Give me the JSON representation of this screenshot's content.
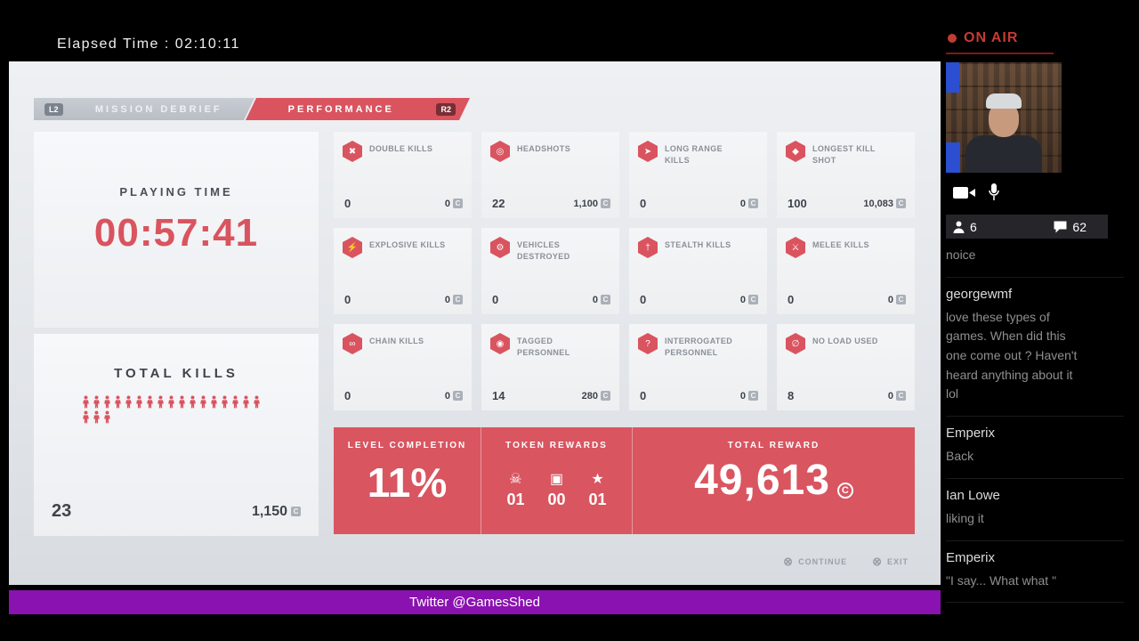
{
  "colors": {
    "accent": "#d9545f",
    "ticker_purple": "#8a12b0",
    "on_air_red": "#c43b33"
  },
  "stream": {
    "elapsed": "Elapsed Time : 02:10:11",
    "on_air": "ON AIR",
    "viewers": "6",
    "comments": "62",
    "ticker": "Twitter @GamesShed"
  },
  "chat": {
    "messages": [
      {
        "name": "",
        "text": "noice"
      },
      {
        "name": "georgewmf",
        "text": "love these types of games. When did this one come out ? Haven't heard anything about it lol"
      },
      {
        "name": "Emperix",
        "text": "Back"
      },
      {
        "name": "Ian Lowe",
        "text": "liking it"
      },
      {
        "name": "Emperix",
        "text": "\"I say... What what \""
      }
    ]
  },
  "game": {
    "tabs": [
      {
        "badge": "L2",
        "label": "MISSION DEBRIEF"
      },
      {
        "badge": "R2",
        "label": "PERFORMANCE"
      }
    ],
    "playing_time": {
      "label": "PLAYING TIME",
      "value": "00:57:41"
    },
    "total_kills": {
      "label": "TOTAL KILLS",
      "count": "23",
      "reward": "1,150",
      "icon_count": 20
    },
    "stats": [
      {
        "icon": "double-kills-icon",
        "glyph": "✖",
        "label": "DOUBLE KILLS",
        "value": "0",
        "reward": "0"
      },
      {
        "icon": "headshots-icon",
        "glyph": "◎",
        "label": "HEADSHOTS",
        "value": "22",
        "reward": "1,100"
      },
      {
        "icon": "long-range-kills-icon",
        "glyph": "➤",
        "label": "LONG RANGE KILLS",
        "value": "0",
        "reward": "0"
      },
      {
        "icon": "longest-kill-shot-icon",
        "glyph": "◆",
        "label": "LONGEST KILL SHOT",
        "value": "100",
        "reward": "10,083"
      },
      {
        "icon": "explosive-kills-icon",
        "glyph": "⚡",
        "label": "EXPLOSIVE KILLS",
        "value": "0",
        "reward": "0"
      },
      {
        "icon": "vehicles-destroyed-icon",
        "glyph": "⚙",
        "label": "VEHICLES DESTROYED",
        "value": "0",
        "reward": "0"
      },
      {
        "icon": "stealth-kills-icon",
        "glyph": "†",
        "label": "STEALTH KILLS",
        "value": "0",
        "reward": "0"
      },
      {
        "icon": "melee-kills-icon",
        "glyph": "⚔",
        "label": "MELEE KILLS",
        "value": "0",
        "reward": "0"
      },
      {
        "icon": "chain-kills-icon",
        "glyph": "∞",
        "label": "CHAIN KILLS",
        "value": "0",
        "reward": "0"
      },
      {
        "icon": "tagged-personnel-icon",
        "glyph": "◉",
        "label": "TAGGED PERSONNEL",
        "value": "14",
        "reward": "280"
      },
      {
        "icon": "interrogated-personnel-icon",
        "glyph": "?",
        "label": "INTERROGATED PERSONNEL",
        "value": "0",
        "reward": "0"
      },
      {
        "icon": "no-load-used-icon",
        "glyph": "∅",
        "label": "NO LOAD USED",
        "value": "8",
        "reward": "0"
      }
    ],
    "summary": {
      "level_completion_label": "LEVEL COMPLETION",
      "level_completion": "11%",
      "token_rewards_label": "TOKEN REWARDS",
      "tokens": [
        {
          "icon": "skull-token-icon",
          "glyph": "☠",
          "value": "01"
        },
        {
          "icon": "crate-token-icon",
          "glyph": "▣",
          "value": "00"
        },
        {
          "icon": "star-token-icon",
          "glyph": "★",
          "value": "01"
        }
      ],
      "total_reward_label": "TOTAL REWARD",
      "total_reward": "49,613"
    },
    "footer": {
      "continue_label": "CONTINUE",
      "exit_label": "EXIT"
    }
  }
}
